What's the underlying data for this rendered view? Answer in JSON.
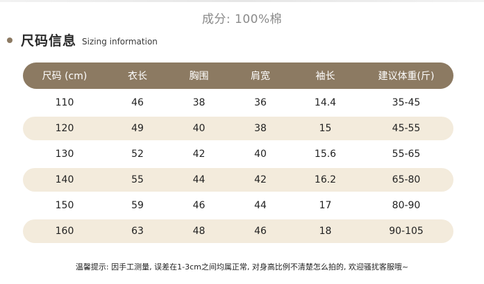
{
  "composition": "成分: 100%棉",
  "section": {
    "title": "尺码信息",
    "subtitle": "Sizing information"
  },
  "table": {
    "headers": [
      "尺码 (cm)",
      "衣长",
      "胸围",
      "肩宽",
      "袖长",
      "建议体重(斤)"
    ],
    "rows": [
      [
        "110",
        "46",
        "38",
        "36",
        "14.4",
        "35-45"
      ],
      [
        "120",
        "49",
        "40",
        "38",
        "15",
        "45-55"
      ],
      [
        "130",
        "52",
        "42",
        "40",
        "15.6",
        "55-65"
      ],
      [
        "140",
        "55",
        "44",
        "42",
        "16.2",
        "65-80"
      ],
      [
        "150",
        "59",
        "46",
        "44",
        "17",
        "80-90"
      ],
      [
        "160",
        "63",
        "48",
        "46",
        "18",
        "90-105"
      ]
    ]
  },
  "note": "温馨提示: 因手工测量, 误差在1-3cm之间均属正常, 对身高比例不清楚怎么拍的, 欢迎骚扰客服哦~",
  "colors": {
    "header_bg": "#8c7a62",
    "alt_row_bg": "#f3ebdc",
    "bullet": "#8c7a63"
  }
}
